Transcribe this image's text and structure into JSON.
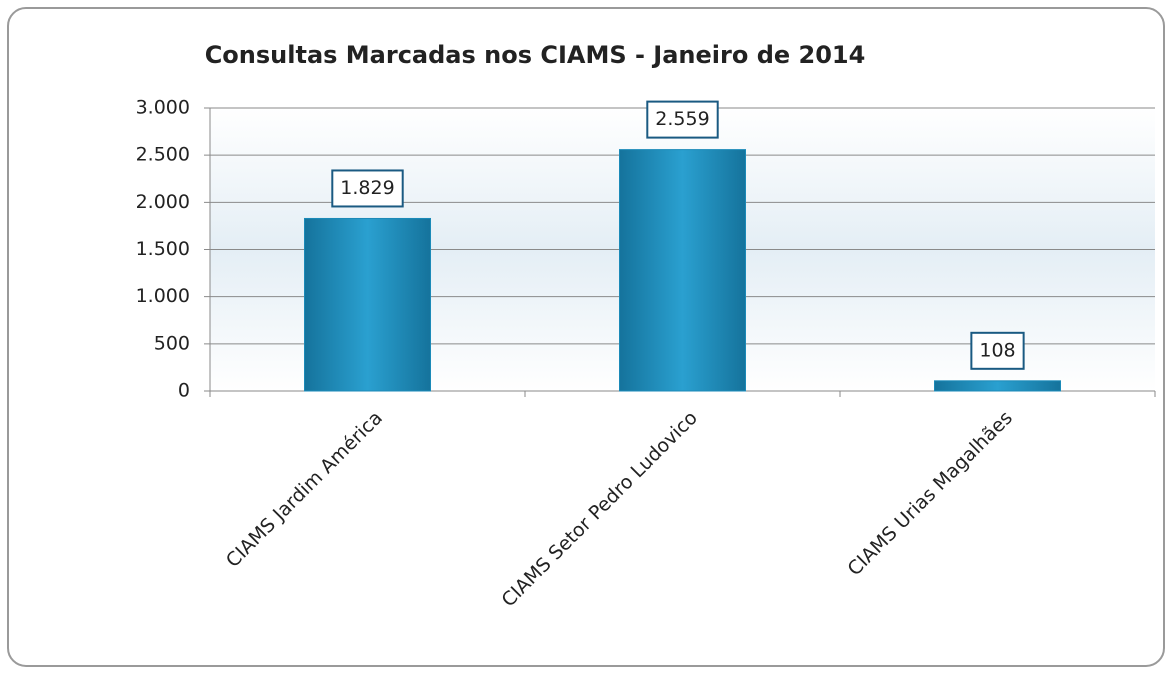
{
  "chart_data": {
    "type": "bar",
    "title": "Consultas Marcadas nos CIAMS - Janeiro de 2014",
    "categories": [
      "CIAMS Jardim América",
      "CIAMS Setor Pedro Ludovico",
      "CIAMS Urias Magalhães"
    ],
    "values": [
      1829,
      2559,
      108
    ],
    "value_labels": [
      "1.829",
      "2.559",
      "108"
    ],
    "color": "#1b8ab8",
    "ylim": [
      0,
      3000
    ],
    "yticks": [
      0,
      500,
      {
        "value": 1000,
        "label": "1.000"
      },
      {
        "value": 1500,
        "label": "1.500"
      },
      {
        "value": 2000,
        "label": "2.000"
      },
      {
        "value": 2500,
        "label": "2.500"
      },
      {
        "value": 3000,
        "label": "3.000"
      }
    ],
    "grid": true
  }
}
